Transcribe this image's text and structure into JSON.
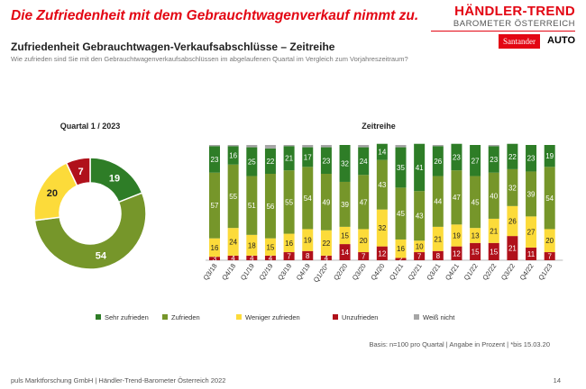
{
  "headline": "Die Zufriedenheit mit dem Gebrauchtwagenverkauf nimmt zu.",
  "logo": {
    "line1": "HÄNDLER-TREND",
    "line2": "BAROMETER ÖSTERREICH",
    "sponsor1": "Santander",
    "sponsor2": "AUTO"
  },
  "subtitle": "Zufriedenheit Gebrauchtwagen-Verkaufsabschlüsse – Zeitreihe",
  "question": "Wie zufrieden sind Sie mit den Gebrauchtwagenverkaufsabschlüssen im abgelaufenen Quartal im Vergleich zum Vorjahreszeitraum?",
  "chart_data": [
    {
      "type": "pie",
      "title": "Quartal 1 / 2023",
      "donut": true,
      "slices": [
        {
          "name": "Sehr zufrieden",
          "value": 19
        },
        {
          "name": "Zufrieden",
          "value": 54
        },
        {
          "name": "Weniger zufrieden",
          "value": 20
        },
        {
          "name": "Unzufrieden",
          "value": 7
        }
      ]
    },
    {
      "type": "bar",
      "stacked": true,
      "title": "Zeitreihe",
      "ylim": [
        0,
        100
      ],
      "categories": [
        "Q3/18",
        "Q4/18",
        "Q1/19",
        "Q2/19",
        "Q3/19",
        "Q4/19",
        "Q1/20*",
        "Q2/20",
        "Q3/20",
        "Q4/20",
        "Q1/21",
        "Q2/21",
        "Q3/21",
        "Q4/21",
        "Q1/22",
        "Q2/22",
        "Q3/22",
        "Q4/22",
        "Q1/23"
      ],
      "series": [
        {
          "name": "Unzufrieden",
          "color": "#b0111b",
          "values": [
            3,
            4,
            4,
            4,
            7,
            8,
            4,
            14,
            7,
            12,
            2,
            7,
            8,
            12,
            15,
            15,
            21,
            11,
            7
          ]
        },
        {
          "name": "Weniger zufrieden",
          "color": "#fcdb3a",
          "values": [
            16,
            24,
            18,
            15,
            16,
            19,
            22,
            15,
            20,
            32,
            16,
            10,
            21,
            19,
            13,
            21,
            26,
            27,
            20
          ]
        },
        {
          "name": "Zufrieden",
          "color": "#76962a",
          "values": [
            57,
            55,
            51,
            56,
            55,
            54,
            49,
            39,
            47,
            43,
            45,
            43,
            44,
            47,
            45,
            40,
            32,
            39,
            54
          ]
        },
        {
          "name": "Sehr zufrieden",
          "color": "#2e7d27",
          "values": [
            23,
            16,
            25,
            22,
            21,
            17,
            23,
            32,
            24,
            14,
            35,
            41,
            26,
            23,
            27,
            23,
            22,
            23,
            19
          ]
        },
        {
          "name": "Weiß nicht",
          "color": "#a6a6a6",
          "values": [
            1,
            1,
            2,
            3,
            1,
            2,
            2,
            0,
            2,
            0,
            2,
            0,
            1,
            0,
            0,
            1,
            0,
            0,
            0
          ]
        }
      ],
      "legend": [
        "Sehr zufrieden",
        "Zufrieden",
        "Weniger zufrieden",
        "Unzufrieden",
        "Weiß nicht"
      ],
      "legend_position": "bottom"
    }
  ],
  "basis": "Basis: n=100 pro Quartal | Angabe in Prozent | *bis 15.03.20",
  "footer": "puls Marktforschung GmbH | Händler-Trend-Barometer Österreich 2022",
  "page": "14"
}
